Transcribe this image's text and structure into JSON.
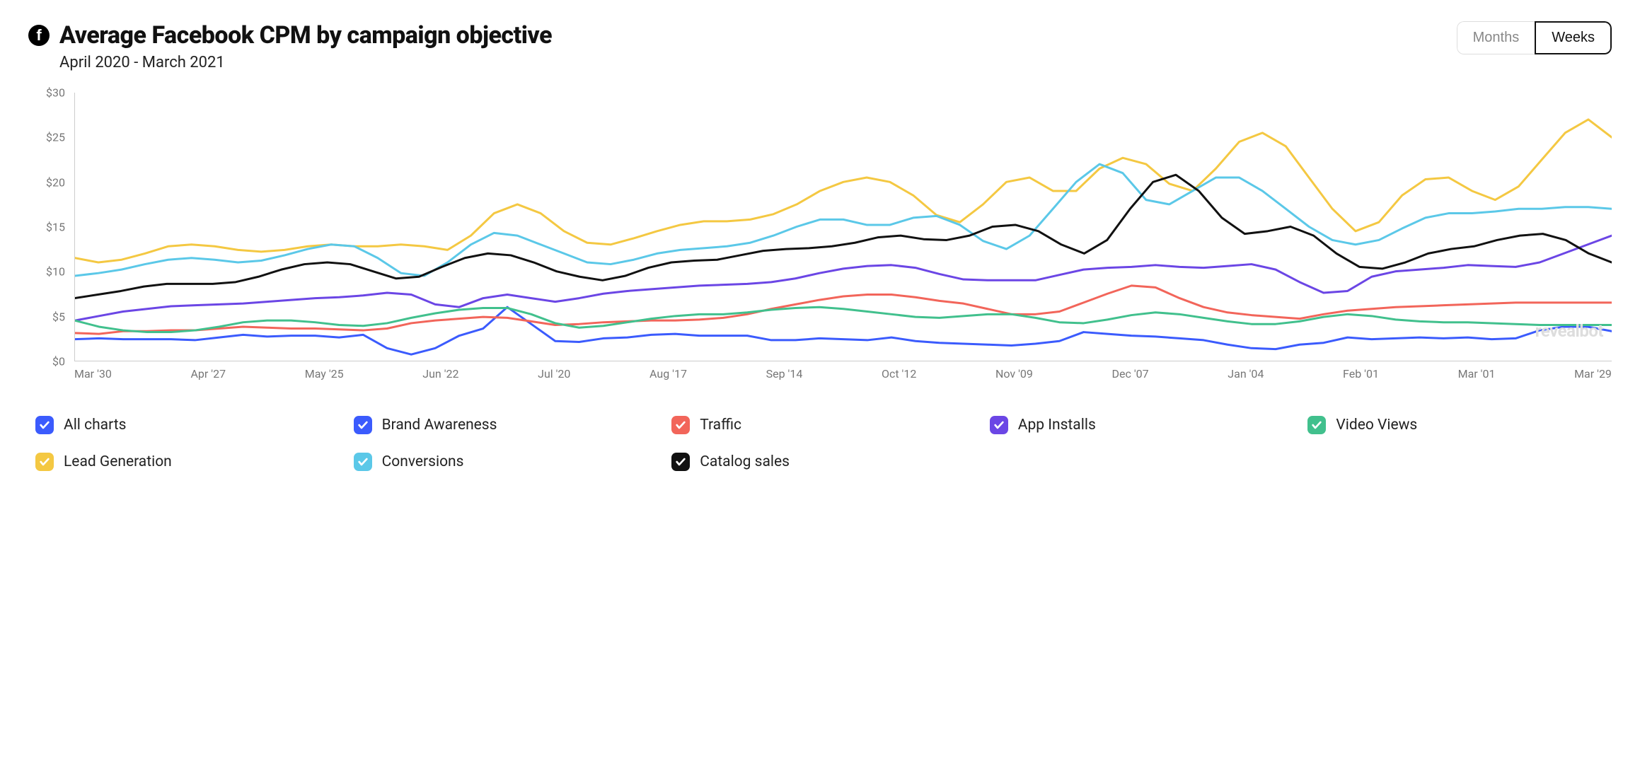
{
  "header": {
    "title": "Average Facebook CPM by campaign objective",
    "subtitle": "April 2020 - March 2021",
    "toggle": {
      "months": "Months",
      "weeks": "Weeks",
      "active": "weeks"
    }
  },
  "watermark": "revealbot",
  "chart": {
    "type": "line",
    "ylabel_prefix": "$",
    "ylim": [
      0,
      30
    ],
    "ytick_step": 5,
    "yticks": [
      0,
      5,
      10,
      15,
      20,
      25,
      30
    ],
    "x_labels": [
      "Mar '30",
      "Apr '27",
      "May '25",
      "Jun '22",
      "Jul '20",
      "Aug '17",
      "Sep '14",
      "Oct '12",
      "Nov '09",
      "Dec '07",
      "Jan '04",
      "Feb '01",
      "Mar '01",
      "Mar '29"
    ],
    "background_color": "#ffffff",
    "axis_color": "#cccccc",
    "tick_font_color": "#777777",
    "line_width": 3,
    "series": [
      {
        "key": "brand_awareness",
        "label": "Brand Awareness",
        "color": "#3b5bfd",
        "values": [
          2.4,
          2.5,
          2.4,
          2.4,
          2.4,
          2.3,
          2.6,
          2.9,
          2.7,
          2.8,
          2.8,
          2.6,
          2.9,
          1.4,
          0.7,
          1.4,
          2.8,
          3.6,
          6.0,
          4.1,
          2.2,
          2.1,
          2.5,
          2.6,
          2.9,
          3.0,
          2.8,
          2.8,
          2.8,
          2.3,
          2.3,
          2.5,
          2.4,
          2.3,
          2.6,
          2.2,
          2.0,
          1.9,
          1.8,
          1.7,
          1.9,
          2.2,
          3.2,
          3.0,
          2.8,
          2.7,
          2.5,
          2.3,
          1.8,
          1.4,
          1.3,
          1.8,
          2.0,
          2.6,
          2.4,
          2.5,
          2.6,
          2.5,
          2.6,
          2.4,
          2.5,
          3.4,
          3.8,
          3.8,
          3.3
        ]
      },
      {
        "key": "traffic",
        "label": "Traffic",
        "color": "#f2655a",
        "values": [
          3.1,
          3.0,
          3.3,
          3.3,
          3.4,
          3.4,
          3.6,
          3.8,
          3.7,
          3.6,
          3.6,
          3.5,
          3.4,
          3.6,
          4.2,
          4.5,
          4.7,
          4.9,
          4.8,
          4.4,
          4.0,
          4.1,
          4.3,
          4.4,
          4.5,
          4.5,
          4.6,
          4.8,
          5.2,
          5.8,
          6.3,
          6.8,
          7.2,
          7.4,
          7.4,
          7.1,
          6.7,
          6.4,
          5.8,
          5.2,
          5.2,
          5.5,
          6.5,
          7.5,
          8.4,
          8.2,
          7.0,
          6.0,
          5.4,
          5.1,
          4.9,
          4.7,
          5.2,
          5.6,
          5.8,
          6.0,
          6.1,
          6.2,
          6.3,
          6.4,
          6.5,
          6.5,
          6.5,
          6.5,
          6.5
        ]
      },
      {
        "key": "app_installs",
        "label": "App Installs",
        "color": "#6b46e5",
        "values": [
          4.5,
          5.0,
          5.5,
          5.8,
          6.1,
          6.2,
          6.3,
          6.4,
          6.6,
          6.8,
          7.0,
          7.1,
          7.3,
          7.6,
          7.4,
          6.3,
          6.0,
          7.0,
          7.4,
          7.0,
          6.6,
          7.0,
          7.5,
          7.8,
          8.0,
          8.2,
          8.4,
          8.5,
          8.6,
          8.8,
          9.2,
          9.8,
          10.3,
          10.6,
          10.7,
          10.4,
          9.7,
          9.1,
          9.0,
          9.0,
          9.0,
          9.6,
          10.2,
          10.4,
          10.5,
          10.7,
          10.5,
          10.4,
          10.6,
          10.8,
          10.2,
          8.8,
          7.6,
          7.8,
          9.4,
          10.0,
          10.2,
          10.4,
          10.7,
          10.6,
          10.5,
          11.0,
          12.0,
          13.0,
          14.0
        ]
      },
      {
        "key": "video_views",
        "label": "Video Views",
        "color": "#41c08d",
        "values": [
          4.5,
          3.8,
          3.4,
          3.2,
          3.2,
          3.4,
          3.8,
          4.3,
          4.5,
          4.5,
          4.3,
          4.0,
          3.9,
          4.2,
          4.8,
          5.3,
          5.7,
          5.9,
          5.9,
          5.2,
          4.2,
          3.7,
          3.9,
          4.3,
          4.7,
          5.0,
          5.2,
          5.2,
          5.4,
          5.7,
          5.9,
          6.0,
          5.8,
          5.5,
          5.2,
          4.9,
          4.8,
          5.0,
          5.2,
          5.2,
          4.8,
          4.3,
          4.2,
          4.6,
          5.1,
          5.4,
          5.2,
          4.8,
          4.4,
          4.1,
          4.1,
          4.4,
          4.9,
          5.2,
          5.0,
          4.6,
          4.4,
          4.3,
          4.3,
          4.2,
          4.1,
          4.0,
          4.0,
          4.0,
          4.0
        ]
      },
      {
        "key": "lead_generation",
        "label": "Lead Generation",
        "color": "#f4c842",
        "values": [
          11.5,
          11.0,
          11.3,
          12.0,
          12.8,
          13.0,
          12.8,
          12.4,
          12.2,
          12.4,
          12.8,
          13.0,
          12.8,
          12.8,
          13.0,
          12.8,
          12.4,
          14.0,
          16.5,
          17.5,
          16.5,
          14.5,
          13.2,
          13.0,
          13.7,
          14.5,
          15.2,
          15.6,
          15.6,
          15.8,
          16.4,
          17.5,
          19.0,
          20.0,
          20.5,
          20.0,
          18.5,
          16.3,
          15.5,
          17.5,
          20.0,
          20.5,
          19.0,
          19.0,
          21.5,
          22.7,
          22.0,
          19.8,
          19.0,
          21.5,
          24.5,
          25.5,
          24.0,
          20.5,
          17.0,
          14.5,
          15.5,
          18.5,
          20.3,
          20.5,
          19.0,
          18.0,
          19.5,
          22.5,
          25.5,
          27.0,
          25.0
        ]
      },
      {
        "key": "conversions",
        "label": "Conversions",
        "color": "#5bc8e8",
        "values": [
          9.5,
          9.8,
          10.2,
          10.8,
          11.3,
          11.5,
          11.3,
          11.0,
          11.2,
          11.8,
          12.5,
          13.0,
          12.8,
          11.5,
          9.8,
          9.5,
          11.0,
          13.0,
          14.3,
          14.0,
          13.0,
          12.0,
          11.0,
          10.8,
          11.3,
          12.0,
          12.4,
          12.6,
          12.8,
          13.2,
          14.0,
          15.0,
          15.8,
          15.8,
          15.2,
          15.2,
          16.0,
          16.2,
          15.2,
          13.4,
          12.5,
          14.0,
          17.0,
          20.0,
          22.0,
          21.0,
          18.0,
          17.5,
          19.0,
          20.5,
          20.5,
          19.0,
          17.0,
          15.0,
          13.5,
          13.0,
          13.5,
          14.8,
          16.0,
          16.5,
          16.5,
          16.7,
          17.0,
          17.0,
          17.2,
          17.2,
          17.0
        ]
      },
      {
        "key": "catalog_sales",
        "label": "Catalog sales",
        "color": "#111111",
        "values": [
          7.0,
          7.4,
          7.8,
          8.3,
          8.6,
          8.6,
          8.6,
          8.8,
          9.4,
          10.2,
          10.8,
          11.0,
          10.8,
          10.0,
          9.2,
          9.4,
          10.5,
          11.5,
          12.0,
          11.8,
          11.0,
          10.0,
          9.4,
          9.0,
          9.5,
          10.4,
          11.0,
          11.2,
          11.3,
          11.8,
          12.3,
          12.5,
          12.6,
          12.8,
          13.2,
          13.8,
          14.0,
          13.6,
          13.5,
          14.0,
          15.0,
          15.2,
          14.5,
          13.0,
          12.0,
          13.5,
          17.0,
          20.0,
          20.8,
          19.0,
          16.0,
          14.2,
          14.5,
          15.0,
          14.0,
          12.0,
          10.5,
          10.3,
          11.0,
          12.0,
          12.5,
          12.8,
          13.5,
          14.0,
          14.2,
          13.5,
          12.0,
          11.0
        ]
      }
    ]
  },
  "legend": {
    "all": "All charts",
    "all_color": "#3b5bfd",
    "items": [
      {
        "key": "brand_awareness",
        "label": "Brand Awareness",
        "color": "#3b5bfd"
      },
      {
        "key": "traffic",
        "label": "Traffic",
        "color": "#f2655a"
      },
      {
        "key": "app_installs",
        "label": "App Installs",
        "color": "#6b46e5"
      },
      {
        "key": "video_views",
        "label": "Video Views",
        "color": "#41c08d"
      },
      {
        "key": "lead_generation",
        "label": "Lead Generation",
        "color": "#f4c842"
      },
      {
        "key": "conversions",
        "label": "Conversions",
        "color": "#5bc8e8"
      },
      {
        "key": "catalog_sales",
        "label": "Catalog sales",
        "color": "#111111"
      }
    ]
  }
}
